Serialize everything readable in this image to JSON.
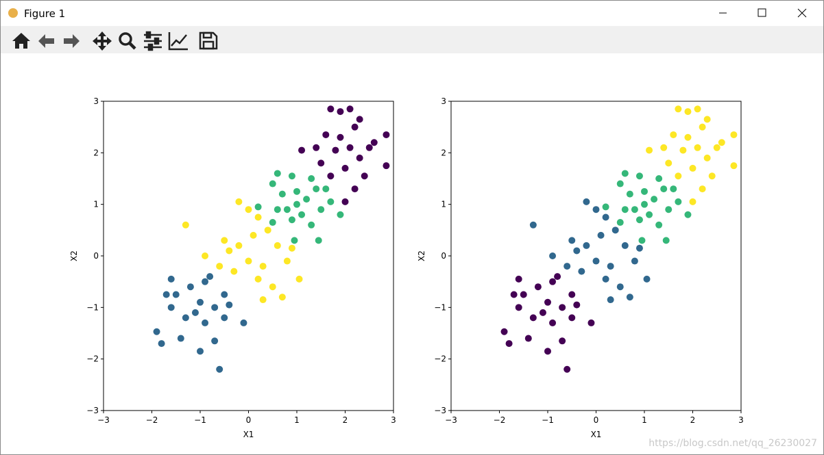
{
  "window": {
    "title": "Figure 1"
  },
  "watermark": "https://blog.csdn.net/qq_26230027",
  "chart_data": [
    {
      "type": "scatter",
      "xlabel": "X1",
      "ylabel": "X2",
      "xlim": [
        -3,
        3
      ],
      "ylim": [
        -3,
        3
      ],
      "xticks": [
        {
          "value": -3,
          "label": "−3"
        },
        {
          "value": -2,
          "label": "−2"
        },
        {
          "value": -1,
          "label": "−1"
        },
        0,
        1,
        2,
        3
      ],
      "yticks": [
        {
          "value": -3,
          "label": "−3"
        },
        {
          "value": -2,
          "label": "−2"
        },
        {
          "value": -1,
          "label": "−1"
        },
        0,
        1,
        2,
        3
      ],
      "series": [
        {
          "color": "#440154",
          "x": [
            1.7,
            1.9,
            2.1,
            1.4,
            1.1,
            1.5,
            1.7,
            2.0,
            2.3,
            2.5,
            2.85,
            2.85,
            2.6,
            2.2,
            1.9,
            1.8,
            2.1,
            2.0,
            2.2,
            2.4,
            1.6,
            2.3
          ],
          "y": [
            2.85,
            2.8,
            2.85,
            2.1,
            2.05,
            1.8,
            1.55,
            1.7,
            1.9,
            2.1,
            2.35,
            1.75,
            2.2,
            2.5,
            2.3,
            2.05,
            2.1,
            1.05,
            1.3,
            1.55,
            2.35,
            2.65
          ]
        },
        {
          "color": "#35b779",
          "x": [
            0.5,
            0.6,
            0.9,
            1.3,
            1.4,
            1.2,
            1.0,
            0.8,
            0.7,
            0.9,
            1.1,
            1.5,
            1.7,
            1.9,
            1.45,
            0.95,
            0.5,
            0.2,
            1.3,
            1.6,
            1.0,
            0.6
          ],
          "y": [
            1.4,
            1.6,
            1.55,
            1.5,
            1.3,
            1.1,
            1.0,
            0.9,
            1.2,
            0.7,
            0.8,
            0.9,
            1.05,
            0.8,
            0.3,
            0.3,
            0.65,
            0.95,
            0.6,
            1.3,
            1.25,
            0.9
          ]
        },
        {
          "color": "#fde725",
          "x": [
            -1.3,
            -0.9,
            -0.5,
            -0.2,
            0.0,
            0.2,
            0.1,
            0.4,
            0.6,
            0.9,
            0.8,
            0.3,
            0.0,
            -0.3,
            -0.6,
            -0.4,
            0.2,
            0.5,
            0.3,
            1.05,
            0.7,
            -0.2
          ],
          "y": [
            0.6,
            0.0,
            0.3,
            1.05,
            0.9,
            0.75,
            0.4,
            0.5,
            0.2,
            0.15,
            -0.1,
            -0.2,
            -0.1,
            -0.3,
            -0.2,
            0.1,
            -0.45,
            -0.6,
            -0.85,
            -0.45,
            -0.8,
            0.2
          ]
        },
        {
          "color": "#31688e",
          "x": [
            -1.9,
            -1.8,
            -1.6,
            -1.7,
            -1.5,
            -1.6,
            -1.2,
            -0.9,
            -0.8,
            -1.0,
            -1.1,
            -1.3,
            -0.9,
            -0.7,
            -0.5,
            -0.4,
            -0.1,
            -1.0,
            -0.7,
            -0.6,
            -1.4,
            -0.5
          ],
          "y": [
            -1.47,
            -1.7,
            -1.0,
            -0.75,
            -0.75,
            -0.45,
            -0.6,
            -0.5,
            -0.4,
            -0.9,
            -1.1,
            -1.2,
            -1.3,
            -1.0,
            -0.75,
            -0.95,
            -1.3,
            -1.85,
            -1.65,
            -2.2,
            -1.6,
            -1.2
          ]
        }
      ]
    },
    {
      "type": "scatter",
      "xlabel": "X1",
      "ylabel": "X2",
      "xlim": [
        -3,
        3
      ],
      "ylim": [
        -3,
        3
      ],
      "xticks": [
        {
          "value": -3,
          "label": "−3"
        },
        {
          "value": -2,
          "label": "−2"
        },
        {
          "value": -1,
          "label": "−1"
        },
        0,
        1,
        2,
        3
      ],
      "yticks": [
        {
          "value": -3,
          "label": "−3"
        },
        {
          "value": -2,
          "label": "−2"
        },
        {
          "value": -1,
          "label": "−1"
        },
        0,
        1,
        2,
        3
      ],
      "series": [
        {
          "color": "#fde725",
          "x": [
            1.7,
            1.9,
            2.1,
            1.4,
            1.1,
            1.5,
            1.7,
            2.0,
            2.3,
            2.5,
            2.85,
            2.85,
            2.6,
            2.2,
            1.9,
            1.8,
            2.1,
            2.0,
            2.2,
            2.4,
            1.6,
            2.3
          ],
          "y": [
            2.85,
            2.8,
            2.85,
            2.1,
            2.05,
            1.8,
            1.55,
            1.7,
            1.9,
            2.1,
            2.35,
            1.75,
            2.2,
            2.5,
            2.3,
            2.05,
            2.1,
            1.05,
            1.3,
            1.55,
            2.35,
            2.65
          ]
        },
        {
          "color": "#35b779",
          "x": [
            0.5,
            0.6,
            0.9,
            1.3,
            1.4,
            1.2,
            1.0,
            0.8,
            0.7,
            0.9,
            1.1,
            1.5,
            1.7,
            1.9,
            1.45,
            0.95,
            0.5,
            0.2,
            1.3,
            1.6,
            1.0,
            0.6
          ],
          "y": [
            1.4,
            1.6,
            1.55,
            1.5,
            1.3,
            1.1,
            1.0,
            0.9,
            1.2,
            0.7,
            0.8,
            0.9,
            1.05,
            0.8,
            0.3,
            0.3,
            0.65,
            0.95,
            0.6,
            1.3,
            1.25,
            0.9
          ]
        },
        {
          "color": "#31688e",
          "x": [
            -1.3,
            -0.9,
            -0.5,
            -0.2,
            0.0,
            0.2,
            0.1,
            0.4,
            0.6,
            0.9,
            0.8,
            0.3,
            0.0,
            -0.3,
            -0.6,
            -0.4,
            0.2,
            0.5,
            0.3,
            1.05,
            0.7,
            -0.2
          ],
          "y": [
            0.6,
            0.0,
            0.3,
            1.05,
            0.9,
            0.75,
            0.4,
            0.5,
            0.2,
            0.15,
            -0.1,
            -0.2,
            -0.1,
            -0.3,
            -0.2,
            0.1,
            -0.45,
            -0.6,
            -0.85,
            -0.45,
            -0.8,
            0.2
          ]
        },
        {
          "color": "#440154",
          "x": [
            -1.9,
            -1.8,
            -1.6,
            -1.7,
            -1.5,
            -1.6,
            -1.2,
            -0.9,
            -0.8,
            -1.0,
            -1.1,
            -1.3,
            -0.9,
            -0.7,
            -0.5,
            -0.4,
            -0.1,
            -1.0,
            -0.7,
            -0.6,
            -1.4,
            -0.5
          ],
          "y": [
            -1.47,
            -1.7,
            -1.0,
            -0.75,
            -0.75,
            -0.45,
            -0.6,
            -0.5,
            -0.4,
            -0.9,
            -1.1,
            -1.2,
            -1.3,
            -1.0,
            -0.75,
            -0.95,
            -1.3,
            -1.85,
            -1.65,
            -2.2,
            -1.6,
            -1.2
          ]
        }
      ]
    }
  ]
}
